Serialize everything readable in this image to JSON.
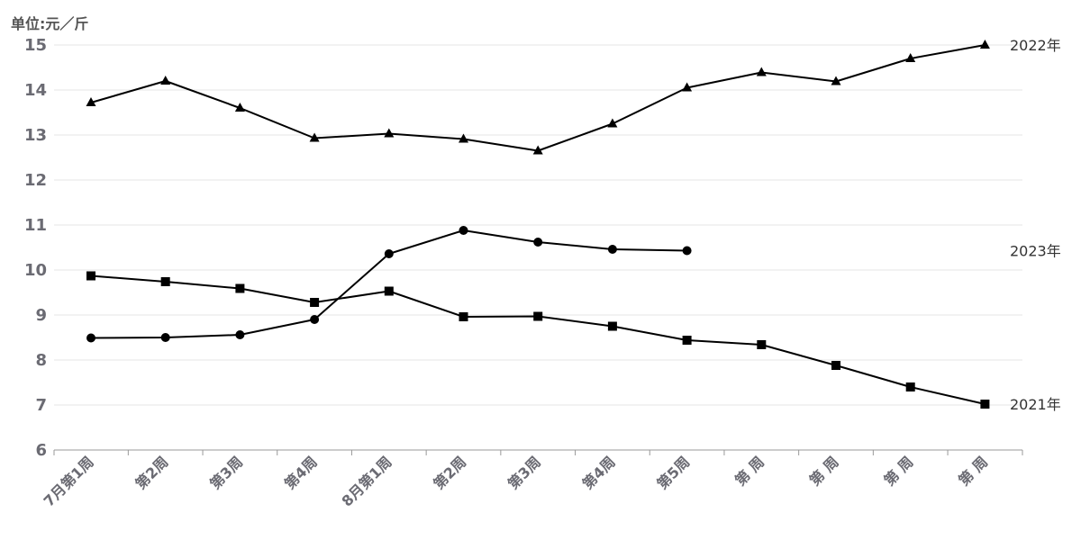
{
  "chart_data": {
    "type": "line",
    "ylabel": "单位:元／斤",
    "ylim": [
      6,
      15
    ],
    "yticks": [
      "6",
      "7",
      "8",
      "9",
      "10",
      "11",
      "12",
      "13",
      "14",
      "15"
    ],
    "categories": [
      "7月第1周",
      "第2周",
      "第3周",
      "第4周",
      "8月第1周",
      "第2周",
      "第3周",
      "第4周",
      "第5周",
      "第 周",
      "第 周",
      "第 周",
      "第 周"
    ],
    "grid": true,
    "series": [
      {
        "name": "2022年",
        "marker": "triangle",
        "color": "#000000",
        "values": [
          13.72,
          14.2,
          13.6,
          12.93,
          13.03,
          12.91,
          12.65,
          13.25,
          14.05,
          14.39,
          14.19,
          14.7,
          15.0
        ]
      },
      {
        "name": "2023年",
        "marker": "circle",
        "color": "#000000",
        "values": [
          8.49,
          8.5,
          8.56,
          8.9,
          10.36,
          10.88,
          10.62,
          10.46,
          10.43,
          null,
          null,
          null,
          null
        ]
      },
      {
        "name": "2021年",
        "marker": "square",
        "color": "#000000",
        "values": [
          9.87,
          9.74,
          9.59,
          9.28,
          9.53,
          8.96,
          8.97,
          8.75,
          8.44,
          8.34,
          7.88,
          7.4,
          7.02
        ]
      }
    ]
  }
}
